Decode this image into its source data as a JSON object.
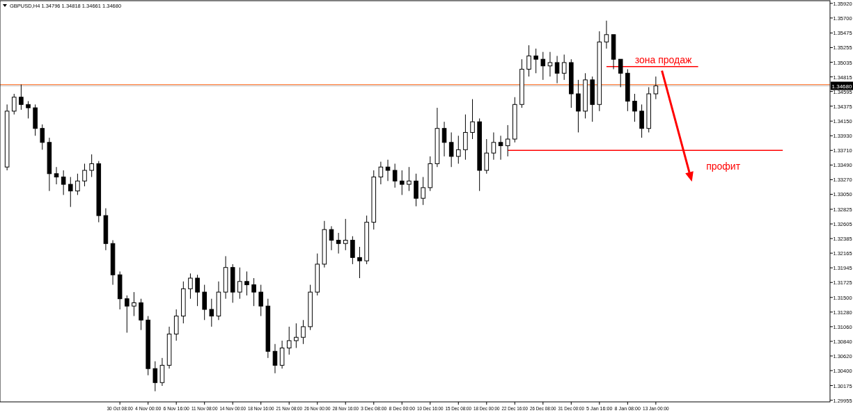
{
  "chart_data": {
    "type": "candlestick",
    "title": "GBPUSD,H4  1.34796 1.34818 1.34661 1.34680",
    "color": "#000000",
    "categories": [
      null,
      null,
      null,
      null,
      null,
      null,
      null,
      null,
      null,
      null,
      null,
      null,
      null,
      null,
      null,
      null,
      null,
      "30 Oct 08:00",
      null,
      null,
      null,
      "4 Nov 00:00",
      null,
      null,
      null,
      "6 Nov 16:00",
      null,
      null,
      null,
      "11 Nov 08:00",
      null,
      null,
      null,
      "14 Nov 00:00",
      null,
      null,
      null,
      "18 Nov 16:00",
      null,
      null,
      null,
      "21 Nov 08:00",
      null,
      null,
      null,
      "26 Nov 00:00",
      null,
      null,
      null,
      "28 Nov 16:00",
      null,
      null,
      null,
      "3 Dec 08:00",
      null,
      null,
      null,
      "8 Dec 00:00",
      null,
      null,
      null,
      "10 Dec 16:00",
      null,
      null,
      null,
      "15 Dec 08:00",
      null,
      null,
      null,
      "18 Dec 00:00",
      null,
      null,
      null,
      "22 Dec 16:00",
      null,
      null,
      null,
      "26 Dec 08:00",
      null,
      null,
      null,
      "31 Dec 00:00",
      null,
      null,
      null,
      "5 Jan 16:00",
      null,
      null,
      null,
      "8 Jan 08:00",
      null,
      null,
      null,
      "13 Jan 00:00",
      null,
      null,
      null,
      null,
      null,
      null,
      null,
      null,
      null,
      null,
      null,
      null,
      null,
      null,
      null,
      null,
      null,
      null,
      null,
      null,
      null,
      null,
      null
    ],
    "ohlc": [
      null,
      [
        1.3346,
        1.344,
        1.3341,
        1.343
      ],
      [
        1.343,
        1.3456,
        1.3425,
        1.3451
      ],
      [
        1.3451,
        1.347,
        1.3432,
        1.344
      ],
      [
        1.344,
        1.3445,
        1.3419,
        1.3435
      ],
      [
        1.3435,
        1.344,
        1.3393,
        1.3404
      ],
      [
        1.3404,
        1.341,
        1.3372,
        1.3383
      ],
      [
        1.3383,
        1.339,
        1.331,
        1.3336
      ],
      [
        1.3336,
        1.3346,
        1.332,
        1.3331
      ],
      [
        1.3331,
        1.3341,
        1.3304,
        1.332
      ],
      [
        1.332,
        1.3331,
        1.3286,
        1.331
      ],
      [
        1.331,
        1.3336,
        1.3304,
        1.3325
      ],
      [
        1.3325,
        1.3351,
        1.3317,
        1.3341
      ],
      [
        1.3341,
        1.3365,
        1.3331,
        1.3351
      ],
      [
        1.3351,
        1.3355,
        1.3263,
        1.3273
      ],
      [
        1.3273,
        1.3284,
        1.3221,
        1.3231
      ],
      [
        1.3231,
        1.3236,
        1.3169,
        1.3184
      ],
      [
        1.3184,
        1.3189,
        1.3132,
        1.3148
      ],
      [
        1.3148,
        1.3153,
        1.3097,
        1.3137
      ],
      [
        1.3137,
        1.3158,
        1.3122,
        1.3142
      ],
      [
        1.3142,
        1.3148,
        1.3101,
        1.3116
      ],
      [
        1.3116,
        1.3122,
        1.3033,
        1.3043
      ],
      [
        1.3043,
        1.3054,
        1.3009,
        1.3022
      ],
      [
        1.3022,
        1.3059,
        1.3017,
        1.3048
      ],
      [
        1.3048,
        1.3106,
        1.3043,
        1.3095
      ],
      [
        1.3095,
        1.3132,
        1.3085,
        1.3122
      ],
      [
        1.3122,
        1.3174,
        1.3111,
        1.3163
      ],
      [
        1.3163,
        1.3186,
        1.3148,
        1.3179
      ],
      [
        1.3179,
        1.3184,
        1.3137,
        1.3158
      ],
      [
        1.3158,
        1.3169,
        1.3116,
        1.3132
      ],
      [
        1.3132,
        1.3148,
        1.3106,
        1.3122
      ],
      [
        1.3122,
        1.3174,
        1.3116,
        1.3158
      ],
      [
        1.3158,
        1.3212,
        1.3148,
        1.3195
      ],
      [
        1.3195,
        1.32,
        1.3142,
        1.3158
      ],
      [
        1.3158,
        1.3195,
        1.3148,
        1.3174
      ],
      [
        1.3174,
        1.3189,
        1.3153,
        1.3169
      ],
      [
        1.3169,
        1.3179,
        1.3137,
        1.3158
      ],
      [
        1.3158,
        1.3169,
        1.3122,
        1.3137
      ],
      [
        1.3137,
        1.3148,
        1.3059,
        1.3069
      ],
      [
        1.3069,
        1.308,
        1.3036,
        1.3048
      ],
      [
        1.3048,
        1.3085,
        1.3043,
        1.3074
      ],
      [
        1.3074,
        1.3106,
        1.3064,
        1.3085
      ],
      [
        1.3085,
        1.3111,
        1.3074,
        1.309
      ],
      [
        1.309,
        1.3116,
        1.308,
        1.3106
      ],
      [
        1.3106,
        1.3169,
        1.3101,
        1.3158
      ],
      [
        1.3158,
        1.3216,
        1.3153,
        1.32
      ],
      [
        1.32,
        1.3265,
        1.3195,
        1.3252
      ],
      [
        1.3252,
        1.3257,
        1.3221,
        1.3236
      ],
      [
        1.3236,
        1.3247,
        1.3216,
        1.3231
      ],
      [
        1.3231,
        1.3268,
        1.3221,
        1.3236
      ],
      [
        1.3236,
        1.3242,
        1.32,
        1.321
      ],
      [
        1.321,
        1.3226,
        1.3179,
        1.3205
      ],
      [
        1.3205,
        1.3273,
        1.32,
        1.3263
      ],
      [
        1.3263,
        1.3341,
        1.3252,
        1.3331
      ],
      [
        1.3331,
        1.3354,
        1.332,
        1.3346
      ],
      [
        1.3346,
        1.3357,
        1.3325,
        1.3341
      ],
      [
        1.3341,
        1.3351,
        1.3315,
        1.3325
      ],
      [
        1.3325,
        1.3341,
        1.3304,
        1.332
      ],
      [
        1.332,
        1.3346,
        1.331,
        1.3325
      ],
      [
        1.3325,
        1.3336,
        1.3287,
        1.3299
      ],
      [
        1.3299,
        1.3331,
        1.3289,
        1.3315
      ],
      [
        1.3315,
        1.3362,
        1.331,
        1.3351
      ],
      [
        1.3351,
        1.3435,
        1.3346,
        1.3404
      ],
      [
        1.3404,
        1.3414,
        1.3362,
        1.3383
      ],
      [
        1.3383,
        1.3398,
        1.3346,
        1.3362
      ],
      [
        1.3362,
        1.3393,
        1.3351,
        1.3372
      ],
      [
        1.3372,
        1.3425,
        1.3357,
        1.3398
      ],
      [
        1.3398,
        1.3448,
        1.3388,
        1.3414
      ],
      [
        1.3414,
        1.3419,
        1.331,
        1.3341
      ],
      [
        1.3341,
        1.3388,
        1.3336,
        1.3367
      ],
      [
        1.3367,
        1.3398,
        1.3357,
        1.3383
      ],
      [
        1.3383,
        1.3393,
        1.3357,
        1.3378
      ],
      [
        1.3378,
        1.3409,
        1.3362,
        1.3388
      ],
      [
        1.3388,
        1.3451,
        1.3383,
        1.344
      ],
      [
        1.344,
        1.3508,
        1.3435,
        1.3493
      ],
      [
        1.3493,
        1.3529,
        1.3482,
        1.3513
      ],
      [
        1.3513,
        1.3524,
        1.3487,
        1.3508
      ],
      [
        1.3508,
        1.3519,
        1.3477,
        1.3498
      ],
      [
        1.3498,
        1.3519,
        1.3482,
        1.3503
      ],
      [
        1.3503,
        1.3513,
        1.3472,
        1.3487
      ],
      [
        1.3487,
        1.3515,
        1.3477,
        1.3503
      ],
      [
        1.3503,
        1.3508,
        1.3435,
        1.3456
      ],
      [
        1.3456,
        1.3477,
        1.3398,
        1.343
      ],
      [
        1.343,
        1.3487,
        1.3419,
        1.3477
      ],
      [
        1.3477,
        1.3482,
        1.3414,
        1.344
      ],
      [
        1.344,
        1.355,
        1.343,
        1.3534
      ],
      [
        1.3534,
        1.3566,
        1.3524,
        1.3545
      ],
      [
        1.3545,
        1.3545,
        1.3493,
        1.3508
      ],
      [
        1.3508,
        1.3508,
        1.3466,
        1.3487
      ],
      [
        1.3487,
        1.3493,
        1.343,
        1.3445
      ],
      [
        1.3445,
        1.3456,
        1.3414,
        1.343
      ],
      [
        1.343,
        1.344,
        1.339,
        1.3404
      ],
      [
        1.3404,
        1.3466,
        1.3398,
        1.3456
      ],
      [
        1.3456,
        1.3482,
        1.3448,
        1.3468
      ],
      null,
      null,
      null,
      null,
      null,
      null,
      null,
      null,
      null,
      null,
      null,
      null,
      null,
      null,
      null,
      null,
      null,
      null,
      null,
      null,
      null,
      null,
      null
    ],
    "series": [
      {
        "type": "line",
        "color": "#ff0000",
        "values": [
          null,
          null,
          null,
          null,
          null,
          null,
          null,
          null,
          null,
          null,
          null,
          null,
          null,
          null,
          null,
          null,
          null,
          null,
          null,
          null,
          null,
          null,
          null,
          null,
          null,
          null,
          null,
          null,
          null,
          null,
          null,
          null,
          null,
          null,
          null,
          null,
          null,
          null,
          null,
          null,
          null,
          null,
          null,
          null,
          null,
          null,
          null,
          null,
          null,
          null,
          null,
          null,
          null,
          null,
          null,
          null,
          null,
          null,
          null,
          null,
          null,
          null,
          null,
          null,
          null,
          null,
          null,
          null,
          null,
          null,
          null,
          null,
          null,
          null,
          null,
          null,
          null,
          null,
          null,
          null,
          null,
          null,
          null,
          null,
          null,
          null,
          1.3497,
          1.3497,
          1.3497,
          1.3497,
          1.3497,
          1.3497,
          1.3497,
          1.3497,
          1.3497,
          1.3497,
          1.3497,
          1.3497,
          1.3497,
          1.3497,
          null,
          null,
          null,
          null,
          null,
          null,
          null,
          null,
          null,
          null,
          null,
          null,
          null,
          null,
          null,
          null,
          null
        ]
      },
      {
        "type": "line",
        "color": "#ff0000",
        "values": [
          null,
          null,
          null,
          null,
          null,
          null,
          null,
          null,
          null,
          null,
          null,
          null,
          null,
          null,
          null,
          null,
          null,
          null,
          null,
          null,
          null,
          null,
          null,
          null,
          null,
          null,
          null,
          null,
          null,
          null,
          null,
          null,
          null,
          null,
          null,
          null,
          null,
          null,
          null,
          null,
          null,
          null,
          null,
          null,
          null,
          null,
          null,
          null,
          null,
          null,
          null,
          null,
          null,
          null,
          null,
          null,
          null,
          null,
          null,
          null,
          null,
          null,
          null,
          null,
          null,
          null,
          null,
          null,
          null,
          null,
          null,
          null,
          1.3371,
          1.3371,
          1.3371,
          1.3371,
          1.3371,
          1.3371,
          1.3371,
          1.3371,
          1.3371,
          1.3371,
          1.3371,
          1.3371,
          1.3371,
          1.3371,
          1.3371,
          1.3371,
          1.3371,
          1.3371,
          1.3371,
          1.3371,
          1.3371,
          1.3371,
          1.3371,
          1.3371,
          1.3371,
          1.3371,
          1.3371,
          1.3371,
          1.3371,
          1.3371,
          1.3371,
          1.3371,
          1.3371,
          1.3371,
          1.3371,
          1.3371,
          1.3371,
          1.3371,
          1.3371,
          1.3371,
          null,
          null,
          null,
          null,
          null
        ]
      }
    ],
    "annotations": [
      "зона продаж",
      "профит"
    ],
    "ref_lines": [
      {
        "axis": "y",
        "value": 1.347,
        "color": "#ff8040"
      },
      {
        "axis": "y",
        "value": 1.3468,
        "label": "1.34680",
        "color": "#c0c0c0"
      }
    ],
    "ylim": [
      1.2993,
      1.3596
    ],
    "yticks": [
      {
        "value": 1.3592,
        "label": "1.35920"
      },
      {
        "value": 1.357,
        "label": "1.35700"
      },
      {
        "value": 1.35475,
        "label": "1.35475"
      },
      {
        "value": 1.35255,
        "label": "1.35255"
      },
      {
        "value": 1.35035,
        "label": "1.35035"
      },
      {
        "value": 1.34815,
        "label": "1.34815"
      },
      {
        "value": 1.34595,
        "label": "1.34595"
      },
      {
        "value": 1.34375,
        "label": "1.34375"
      },
      {
        "value": 1.3415,
        "label": "1.34150"
      },
      {
        "value": 1.3393,
        "label": "1.33930"
      },
      {
        "value": 1.3371,
        "label": "1.33710"
      },
      {
        "value": 1.3349,
        "label": "1.33490"
      },
      {
        "value": 1.3327,
        "label": "1.33270"
      },
      {
        "value": 1.3305,
        "label": "1.33050"
      },
      {
        "value": 1.32825,
        "label": "1.32825"
      },
      {
        "value": 1.32605,
        "label": "1.32605"
      },
      {
        "value": 1.32385,
        "label": "1.32385"
      },
      {
        "value": 1.32165,
        "label": "1.32165"
      },
      {
        "value": 1.31945,
        "label": "1.31945"
      },
      {
        "value": 1.31725,
        "label": "1.31725"
      },
      {
        "value": 1.315,
        "label": "1.31500"
      },
      {
        "value": 1.3128,
        "label": "1.31280"
      },
      {
        "value": 1.3106,
        "label": "1.31060"
      },
      {
        "value": 1.3084,
        "label": "1.30840"
      },
      {
        "value": 1.3062,
        "label": "1.30620"
      },
      {
        "value": 1.304,
        "label": "1.30400"
      },
      {
        "value": 1.30175,
        "label": "1.30175"
      },
      {
        "value": 1.29955,
        "label": "1.29955"
      }
    ]
  }
}
